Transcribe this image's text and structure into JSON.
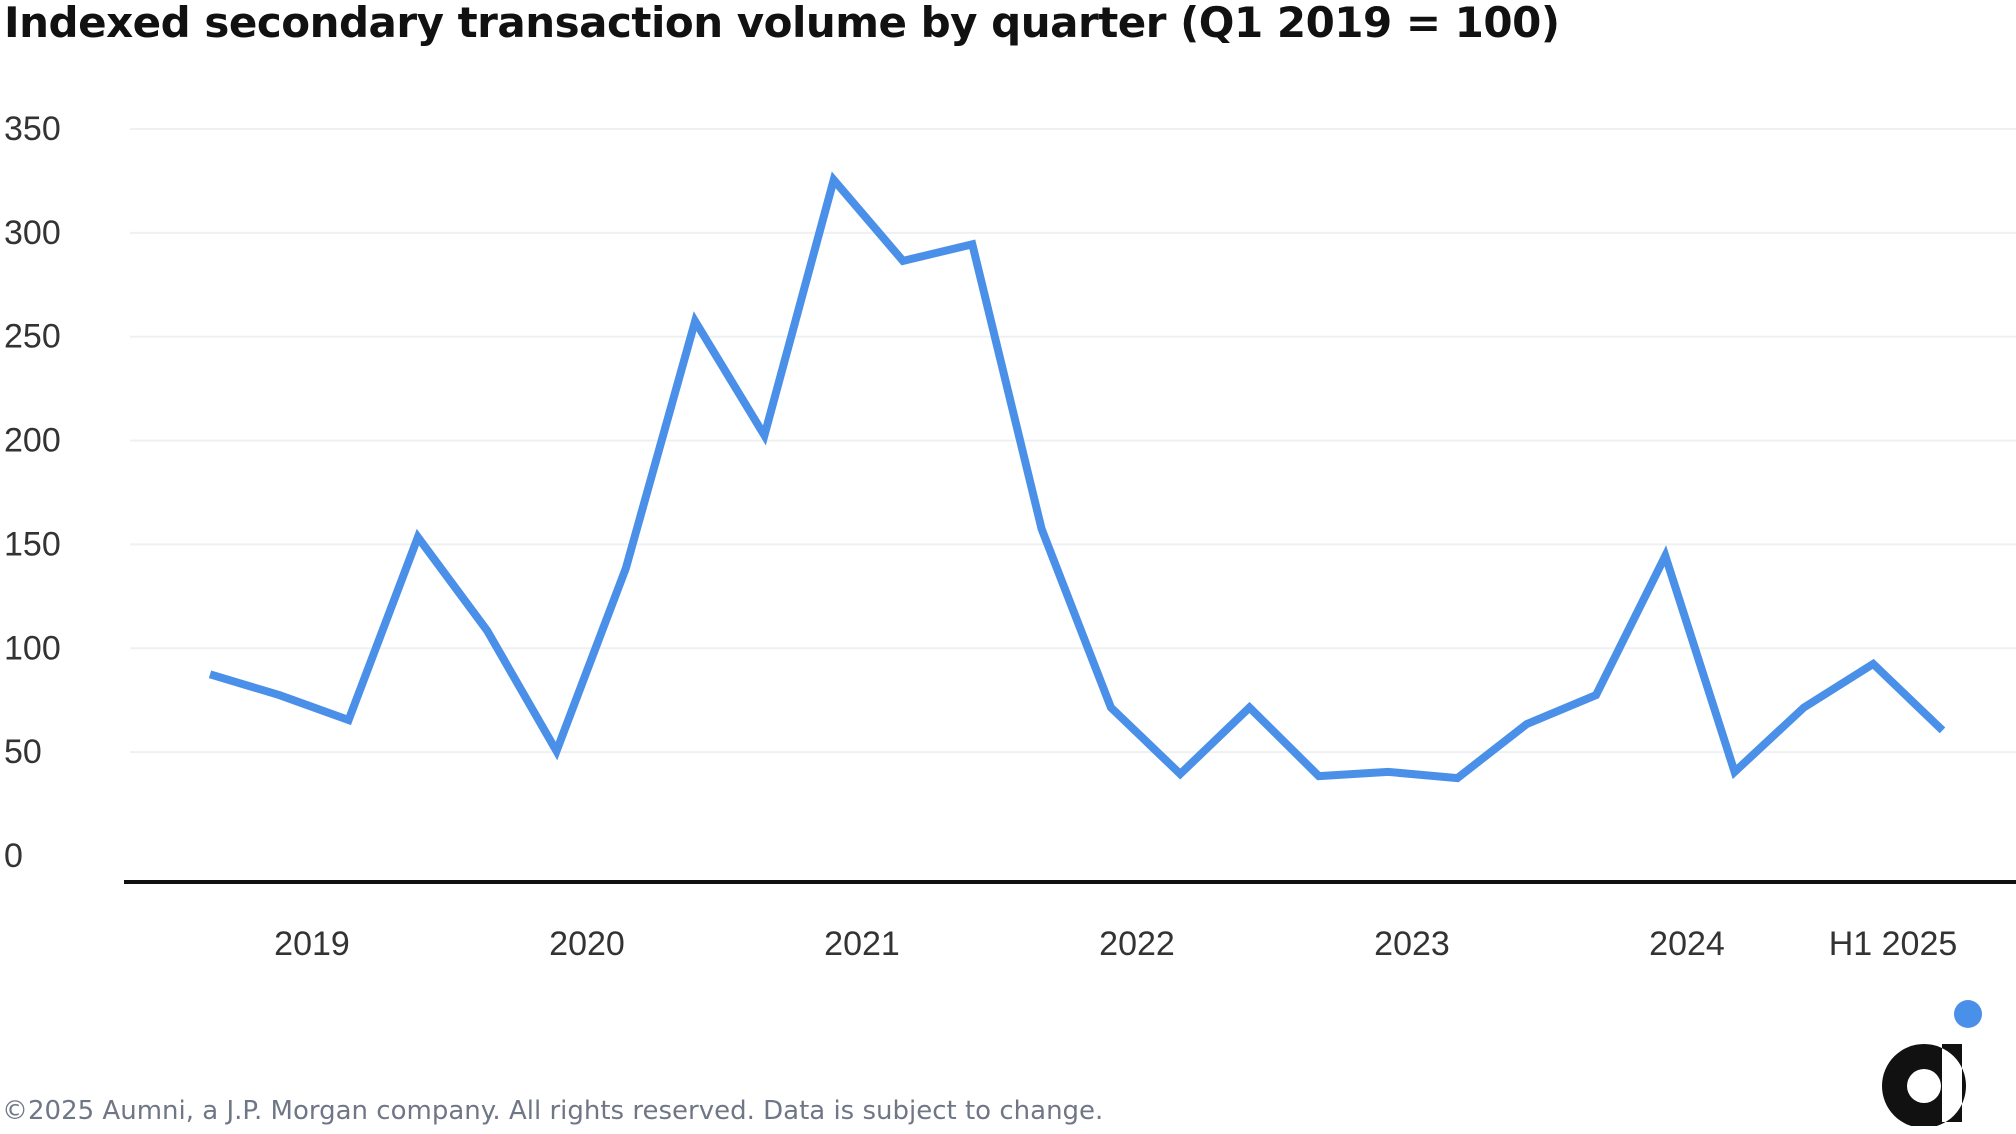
{
  "title": "Indexed secondary transaction volume by quarter (Q1 2019 = 100)",
  "footer": "©2025 Aumni, a J.P. Morgan company. All rights reserved. Data is subject to change.",
  "colors": {
    "line": "#4a90e8",
    "axis": "#111111",
    "grid": "#eef0f2",
    "tick_text": "#333333",
    "footer_text": "#6f7787",
    "logo_dark": "#111111",
    "logo_dot": "#4a90e8"
  },
  "chart_data": {
    "type": "line",
    "title": "Indexed secondary transaction volume by quarter (Q1 2019 = 100)",
    "xlabel": "",
    "ylabel": "",
    "ylim": [
      0,
      350
    ],
    "yticks": [
      0,
      50,
      100,
      150,
      200,
      250,
      300,
      350
    ],
    "grid": true,
    "legend": "none",
    "x_tick_labels": [
      "2019",
      "2020",
      "2021",
      "2022",
      "2023",
      "2024",
      "H1 2025"
    ],
    "x": [
      "Q1 2019",
      "Q2 2019",
      "Q3 2019",
      "Q4 2019",
      "Q1 2020",
      "Q2 2020",
      "Q3 2020",
      "Q4 2020",
      "Q1 2021",
      "Q2 2021",
      "Q3 2021",
      "Q4 2021",
      "Q1 2022",
      "Q2 2022",
      "Q3 2022",
      "Q4 2022",
      "Q1 2023",
      "Q2 2023",
      "Q3 2023",
      "Q4 2023",
      "Q1 2024",
      "Q2 2024",
      "Q3 2024",
      "Q4 2024",
      "Q1 2025",
      "Q2 2025"
    ],
    "series": [
      {
        "values": [
          100,
          90,
          78,
          166,
          121,
          63,
          151,
          270,
          215,
          338,
          299,
          307,
          170,
          84,
          52,
          84,
          51,
          53,
          50,
          76,
          90,
          157,
          53,
          84,
          105,
          73
        ]
      }
    ]
  }
}
